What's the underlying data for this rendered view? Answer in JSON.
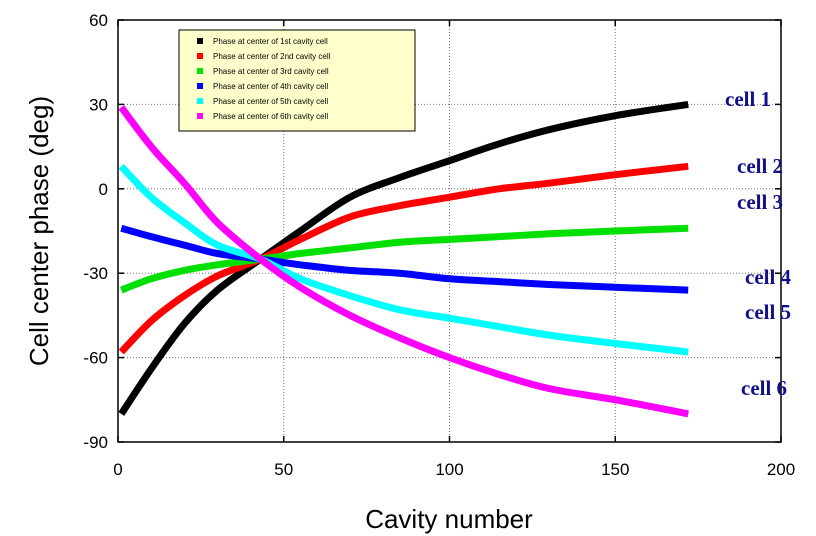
{
  "chart_data": {
    "type": "line",
    "xlabel": "Cavity number",
    "ylabel": "Cell center phase (deg)",
    "xlim": [
      0,
      200
    ],
    "ylim": [
      -90,
      60
    ],
    "xticks": [
      0,
      50,
      100,
      150,
      200
    ],
    "yticks": [
      -90,
      -60,
      -30,
      0,
      30,
      60
    ],
    "xtick_labels": [
      "0",
      "50",
      "100",
      "150",
      "200"
    ],
    "ytick_labels": [
      "-90",
      "-60",
      "-30",
      "0",
      "30",
      "60"
    ],
    "grid": true,
    "legend_position": "top-left",
    "x": [
      1,
      10,
      20,
      30,
      43,
      55,
      70,
      85,
      100,
      115,
      130,
      150,
      172
    ],
    "series": [
      {
        "name": "Phase at center of 1st cavity cell",
        "color": "#000000",
        "label": "cell 1",
        "values": [
          -80,
          -64,
          -48,
          -36,
          -25,
          -15,
          -3,
          4,
          10,
          16,
          21,
          26,
          30
        ]
      },
      {
        "name": "Phase at center of 2nd cavity cell",
        "color": "#ff0000",
        "label": "cell 2",
        "values": [
          -58,
          -47,
          -38,
          -31,
          -25,
          -18,
          -10,
          -6,
          -3,
          0,
          2,
          5,
          8
        ]
      },
      {
        "name": "Phase at center of 3rd cavity cell",
        "color": "#00e000",
        "label": "cell 3",
        "values": [
          -36,
          -32,
          -29,
          -27,
          -25,
          -23,
          -21,
          -19,
          -18,
          -17,
          -16,
          -15,
          -14
        ]
      },
      {
        "name": "Phase at center of 4th cavity cell",
        "color": "#0000ff",
        "label": "cell 4",
        "values": [
          -14,
          -17,
          -20,
          -23,
          -25,
          -27,
          -29,
          -30,
          -32,
          -33,
          -34,
          -35,
          -36
        ]
      },
      {
        "name": "Phase at center of 5th cavity cell",
        "color": "#00ffff",
        "label": "cell 5",
        "values": [
          8,
          -3,
          -12,
          -20,
          -25,
          -32,
          -38,
          -43,
          -46,
          -49,
          -52,
          -55,
          -58
        ]
      },
      {
        "name": "Phase at center of 6th cavity cell",
        "color": "#ff00ff",
        "label": "cell 6",
        "values": [
          29,
          15,
          2,
          -12,
          -25,
          -35,
          -45,
          -53,
          -60,
          -66,
          -71,
          -75,
          -80
        ]
      }
    ],
    "label_color": "#10108a",
    "legend_bg": "#ffffcc"
  }
}
